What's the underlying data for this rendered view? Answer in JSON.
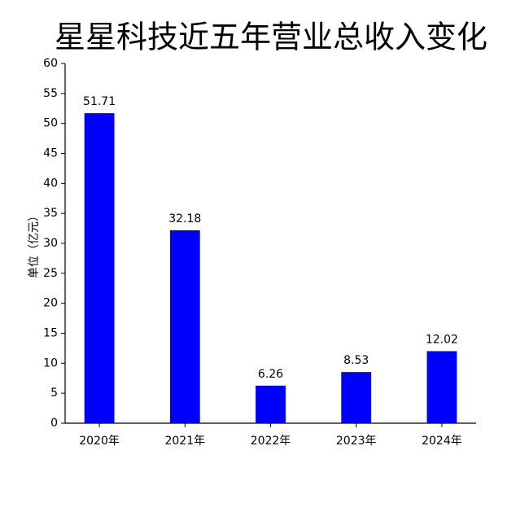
{
  "chart_data": {
    "type": "bar",
    "title": "星星科技近五年营业总收入变化",
    "y_label": "单位（亿元）",
    "categories": [
      "2020年",
      "2021年",
      "2022年",
      "2023年",
      "2024年"
    ],
    "values": [
      51.71,
      32.18,
      6.26,
      8.53,
      12.02
    ],
    "color": "#0000ff",
    "ylim": [
      0,
      60
    ],
    "yticks": [
      0,
      5,
      10,
      15,
      20,
      25,
      30,
      35,
      40,
      45,
      50,
      55,
      60
    ],
    "grid": false
  }
}
